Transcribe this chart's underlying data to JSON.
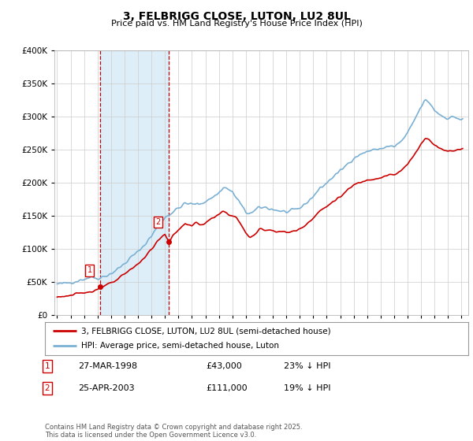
{
  "title": "3, FELBRIGG CLOSE, LUTON, LU2 8UL",
  "subtitle": "Price paid vs. HM Land Registry's House Price Index (HPI)",
  "legend_line1": "3, FELBRIGG CLOSE, LUTON, LU2 8UL (semi-detached house)",
  "legend_line2": "HPI: Average price, semi-detached house, Luton",
  "footer": "Contains HM Land Registry data © Crown copyright and database right 2025.\nThis data is licensed under the Open Government Licence v3.0.",
  "sale1_label": "1",
  "sale1_date": "27-MAR-1998",
  "sale1_price": "£43,000",
  "sale1_hpi": "23% ↓ HPI",
  "sale2_label": "2",
  "sale2_date": "25-APR-2003",
  "sale2_price": "£111,000",
  "sale2_hpi": "19% ↓ HPI",
  "price_color": "#cc0000",
  "hpi_color": "#7ab0d4",
  "vline_color": "#cc0000",
  "highlight_color": "#ddeef8",
  "ylim": [
    0,
    400000
  ],
  "yticks": [
    0,
    50000,
    100000,
    150000,
    200000,
    250000,
    300000,
    350000,
    400000
  ],
  "sale1_x": 1998.22,
  "sale1_y": 43000,
  "sale2_x": 2003.3,
  "sale2_y": 111000,
  "xmin": 1994.8,
  "xmax": 2025.5,
  "bg_color": "#ffffff",
  "plot_bg": "#ffffff",
  "grid_color": "#cccccc"
}
